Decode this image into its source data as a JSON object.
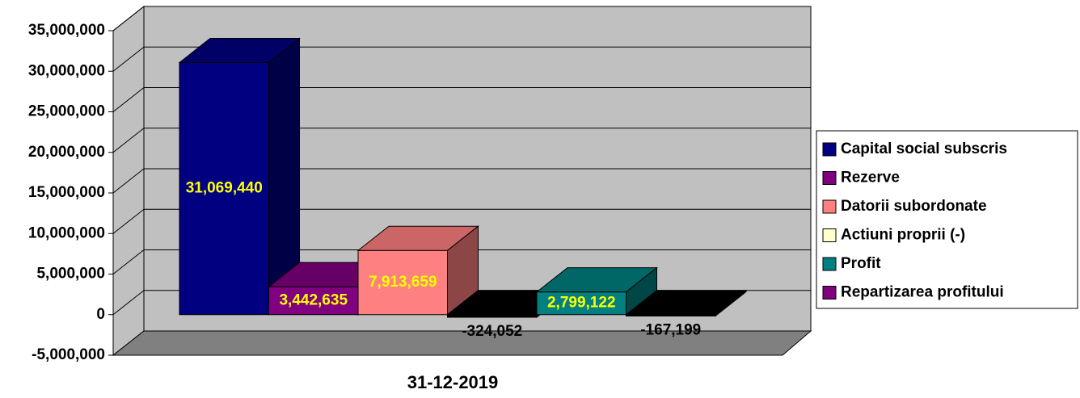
{
  "chart_data": {
    "type": "bar3d",
    "categories": [
      "31-12-2019"
    ],
    "series": [
      {
        "name": "Capital social subscris",
        "color": "#000080",
        "values": [
          31069440
        ],
        "value_labels": [
          "31,069,440"
        ]
      },
      {
        "name": "Rezerve",
        "color": "#800080",
        "values": [
          3442635
        ],
        "value_labels": [
          "3,442,635"
        ]
      },
      {
        "name": "Datorii subordonate",
        "color": "#ff8080",
        "values": [
          7913659
        ],
        "value_labels": [
          "7,913,659"
        ]
      },
      {
        "name": "Actiuni proprii (-)",
        "color": "#ffffcc",
        "values": [
          -324052
        ],
        "value_labels": [
          "-324,052"
        ]
      },
      {
        "name": "Profit",
        "color": "#008080",
        "values": [
          2799122
        ],
        "value_labels": [
          "2,799,122"
        ]
      },
      {
        "name": "Repartizarea profitului",
        "color": "#800080",
        "values": [
          -167199
        ],
        "value_labels": [
          "-167,199"
        ]
      }
    ],
    "negative_color": "#000000",
    "ylim": [
      -5000000,
      35000000
    ],
    "yticks": [
      {
        "value": -5000000,
        "label": "-5,000,000"
      },
      0,
      {
        "value": 5000000,
        "label": "5,000,000"
      },
      {
        "value": 10000000,
        "label": "10,000,000"
      },
      {
        "value": 15000000,
        "label": "15,000,000"
      },
      {
        "value": 20000000,
        "label": "20,000,000"
      },
      {
        "value": 25000000,
        "label": "25,000,000"
      },
      {
        "value": 30000000,
        "label": "30,000,000"
      },
      {
        "value": 35000000,
        "label": "35,000,000"
      }
    ],
    "grid": true,
    "legend": "right"
  }
}
